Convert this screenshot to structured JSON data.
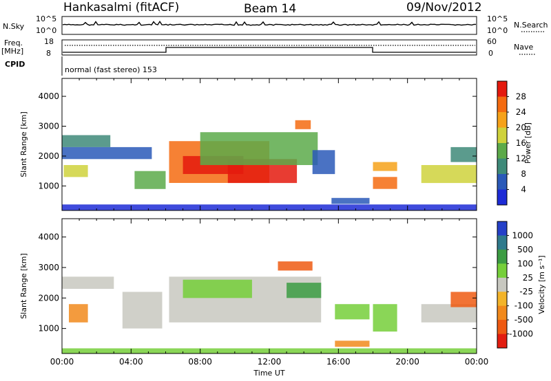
{
  "header": {
    "station": "Hankasalmi (fitACF)",
    "beam": "Beam 14",
    "date": "09/Nov/2012"
  },
  "strip": {
    "nsky_label": "N.Sky",
    "nsky_ticks": [
      "10^5",
      "10^0"
    ],
    "nsky_right_ticks": [
      "10^5",
      "10^0"
    ],
    "nsearch_label": "N.Search",
    "freq_label": "Freq.",
    "freq_unit": "[MHz]",
    "freq_ticks": [
      "18",
      "8"
    ],
    "nave_label": "Nave",
    "nave_ticks": [
      "60",
      "0"
    ],
    "cpid_label": "CPID",
    "cpid_text": "normal (fast stereo) 153"
  },
  "chart_data": [
    {
      "type": "heatmap",
      "panel": "power",
      "ylabel": "Slant Range [km]",
      "xlabel": "",
      "ylim": [
        180,
        4600
      ],
      "yticks": [
        "1000",
        "2000",
        "3000",
        "4000"
      ],
      "xlim": [
        "00:00",
        "24:00"
      ],
      "colorbar_label": "Power [dB]",
      "colorbar_ticks": [
        "4",
        "8",
        "12",
        "16",
        "20",
        "24",
        "28"
      ],
      "colors": [
        "#1d2bd6",
        "#2a59b8",
        "#3e8a79",
        "#5caa4a",
        "#cfd23c",
        "#f6a21a",
        "#f46b10",
        "#e41a0e"
      ],
      "regions": [
        {
          "t0": 0.0,
          "t1": 2.8,
          "r0": 2300,
          "r1": 2700,
          "level": 2
        },
        {
          "t0": 0.1,
          "t1": 1.5,
          "r0": 1300,
          "r1": 1700,
          "level": 4
        },
        {
          "t0": 0.0,
          "t1": 5.2,
          "r0": 1900,
          "r1": 2300,
          "level": 1
        },
        {
          "t0": 4.2,
          "t1": 6.0,
          "r0": 900,
          "r1": 1500,
          "level": 3
        },
        {
          "t0": 6.2,
          "t1": 12.0,
          "r0": 1100,
          "r1": 2500,
          "level": 6
        },
        {
          "t0": 7.0,
          "t1": 10.5,
          "r0": 1400,
          "r1": 2000,
          "level": 7
        },
        {
          "t0": 9.6,
          "t1": 13.6,
          "r0": 1100,
          "r1": 1900,
          "level": 7
        },
        {
          "t0": 8.0,
          "t1": 14.8,
          "r0": 1700,
          "r1": 2800,
          "level": 3
        },
        {
          "t0": 13.5,
          "t1": 14.4,
          "r0": 2900,
          "r1": 3200,
          "level": 6
        },
        {
          "t0": 14.5,
          "t1": 15.8,
          "r0": 1400,
          "r1": 2200,
          "level": 1
        },
        {
          "t0": 15.6,
          "t1": 17.8,
          "r0": 400,
          "r1": 600,
          "level": 1
        },
        {
          "t0": 18.0,
          "t1": 19.4,
          "r0": 900,
          "r1": 1300,
          "level": 6
        },
        {
          "t0": 18.0,
          "t1": 19.4,
          "r0": 1500,
          "r1": 1800,
          "level": 5
        },
        {
          "t0": 20.8,
          "t1": 24.0,
          "r0": 1100,
          "r1": 1700,
          "level": 4
        },
        {
          "t0": 22.5,
          "t1": 24.0,
          "r0": 1800,
          "r1": 2300,
          "level": 2
        },
        {
          "t0": 0.0,
          "t1": 24.0,
          "r0": 180,
          "r1": 380,
          "level": 0
        }
      ]
    },
    {
      "type": "heatmap",
      "panel": "velocity",
      "ylabel": "Slant Range [km]",
      "xlabel": "Time UT",
      "ylim": [
        180,
        4600
      ],
      "yticks": [
        "1000",
        "2000",
        "3000",
        "4000"
      ],
      "xticks": [
        "00:00",
        "04:00",
        "08:00",
        "12:00",
        "16:00",
        "20:00",
        "00:00"
      ],
      "xlim": [
        "00:00",
        "24:00"
      ],
      "colorbar_label": "Velocity [m s⁻¹]",
      "colorbar_ticks": [
        "1000",
        "500",
        "100",
        "25",
        "-25",
        "-100",
        "-500",
        "-1000"
      ],
      "colors": [
        "#2540c8",
        "#2f7a8c",
        "#3c9c43",
        "#76cf3a",
        "#c8c8c0",
        "#f3b42a",
        "#f1891c",
        "#ee5a12",
        "#e21d10"
      ],
      "regions": [
        {
          "t0": 0.0,
          "t1": 3.0,
          "r0": 2300,
          "r1": 2700,
          "level": 4
        },
        {
          "t0": 0.4,
          "t1": 1.5,
          "r0": 1200,
          "r1": 1800,
          "level": 6
        },
        {
          "t0": 3.5,
          "t1": 5.8,
          "r0": 1000,
          "r1": 2200,
          "level": 4
        },
        {
          "t0": 6.2,
          "t1": 15.0,
          "r0": 1200,
          "r1": 2700,
          "level": 4
        },
        {
          "t0": 7.0,
          "t1": 11.0,
          "r0": 2000,
          "r1": 2600,
          "level": 3
        },
        {
          "t0": 12.5,
          "t1": 14.5,
          "r0": 2900,
          "r1": 3200,
          "level": 7
        },
        {
          "t0": 13.0,
          "t1": 15.0,
          "r0": 2000,
          "r1": 2500,
          "level": 2
        },
        {
          "t0": 15.8,
          "t1": 17.8,
          "r0": 1300,
          "r1": 1800,
          "level": 3
        },
        {
          "t0": 15.8,
          "t1": 17.8,
          "r0": 400,
          "r1": 600,
          "level": 6
        },
        {
          "t0": 18.0,
          "t1": 19.4,
          "r0": 900,
          "r1": 1800,
          "level": 3
        },
        {
          "t0": 20.8,
          "t1": 24.0,
          "r0": 1200,
          "r1": 1800,
          "level": 4
        },
        {
          "t0": 22.5,
          "t1": 24.0,
          "r0": 1700,
          "r1": 2200,
          "level": 7
        },
        {
          "t0": 0.0,
          "t1": 24.0,
          "r0": 180,
          "r1": 350,
          "level": 3
        }
      ]
    }
  ]
}
